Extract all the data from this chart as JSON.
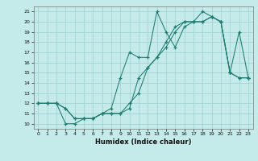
{
  "title": "",
  "xlabel": "Humidex (Indice chaleur)",
  "ylabel": "",
  "background_color": "#c5eaea",
  "grid_color": "#9ecece",
  "line_color": "#1e7b70",
  "ylim": [
    9.5,
    21.5
  ],
  "xlim": [
    -0.5,
    23.5
  ],
  "yticks": [
    10,
    11,
    12,
    13,
    14,
    15,
    16,
    17,
    18,
    19,
    20,
    21
  ],
  "xticks": [
    0,
    1,
    2,
    3,
    4,
    5,
    6,
    7,
    8,
    9,
    10,
    11,
    12,
    13,
    14,
    15,
    16,
    17,
    18,
    19,
    20,
    21,
    22,
    23
  ],
  "series1_x": [
    0,
    1,
    2,
    3,
    4,
    5,
    6,
    7,
    8,
    9,
    10,
    11,
    12,
    13,
    14,
    15,
    16,
    17,
    18,
    19,
    20,
    21,
    22,
    23
  ],
  "series1_y": [
    12,
    12,
    12,
    11.5,
    10.5,
    10.5,
    10.5,
    11,
    11,
    11,
    11.5,
    14.5,
    15.5,
    16.5,
    18,
    19.5,
    20,
    20,
    20,
    20.5,
    20,
    15,
    14.5,
    14.5
  ],
  "series2_x": [
    0,
    1,
    2,
    3,
    4,
    5,
    6,
    7,
    8,
    9,
    10,
    11,
    12,
    13,
    14,
    15,
    16,
    17,
    18,
    19,
    20,
    21,
    22,
    23
  ],
  "series2_y": [
    12,
    12,
    12,
    10,
    10,
    10.5,
    10.5,
    11,
    11.5,
    14.5,
    17,
    16.5,
    16.5,
    21,
    19,
    17.5,
    19.5,
    20,
    20,
    20.5,
    20,
    15,
    19,
    14.5
  ],
  "series3_x": [
    0,
    1,
    2,
    3,
    4,
    5,
    6,
    7,
    8,
    9,
    10,
    11,
    12,
    13,
    14,
    15,
    16,
    17,
    18,
    19,
    20,
    21,
    22,
    23
  ],
  "series3_y": [
    12,
    12,
    12,
    11.5,
    10.5,
    10.5,
    10.5,
    11,
    11,
    11,
    12,
    13,
    15.5,
    16.5,
    17.5,
    19,
    20,
    20,
    21,
    20.5,
    20,
    15,
    14.5,
    14.5
  ]
}
